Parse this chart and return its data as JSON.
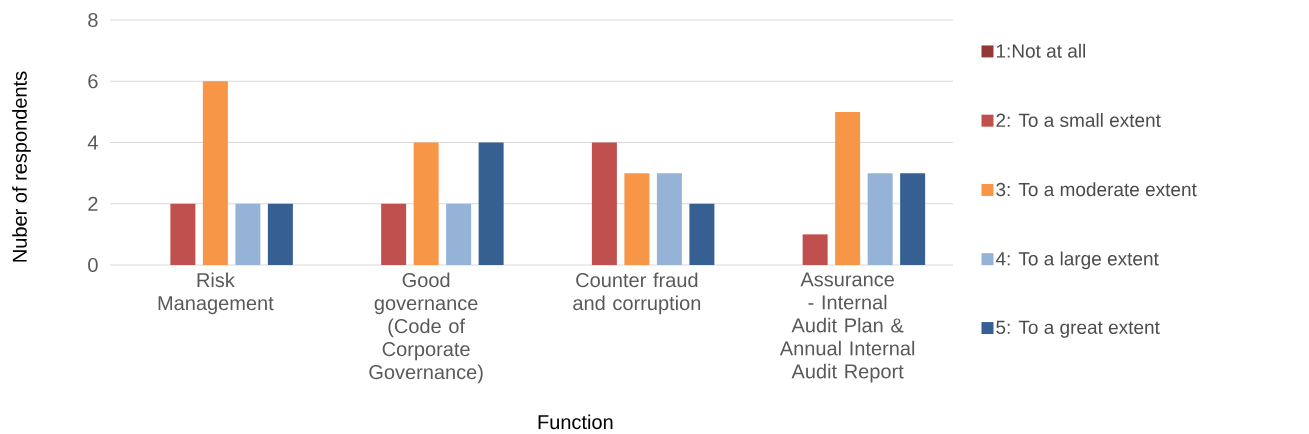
{
  "chart_data": {
    "type": "bar",
    "xlabel": "Function",
    "ylabel": "Nuber of respondents",
    "categories": [
      "Risk Management",
      "Good governance (Code of Corporate Governance)",
      "Counter fraud and corruption",
      "Assurance - Internal Audit Plan & Annual Internal Audit Report"
    ],
    "series": [
      {
        "name": "1:Not at all",
        "color": "#953735",
        "values": [
          0,
          0,
          0,
          0
        ]
      },
      {
        "name": "2: To a small extent",
        "color": "#c0504d",
        "values": [
          2,
          2,
          4,
          1
        ]
      },
      {
        "name": "3: To a moderate extent",
        "color": "#f79646",
        "values": [
          6,
          4,
          3,
          5
        ]
      },
      {
        "name": "4: To a large extent",
        "color": "#95b3d7",
        "values": [
          2,
          2,
          3,
          3
        ]
      },
      {
        "name": "5: To a great extent",
        "color": "#366092",
        "values": [
          2,
          4,
          2,
          3
        ]
      }
    ],
    "ylim": [
      0,
      8
    ],
    "yticks": [
      0,
      2,
      4,
      6,
      8
    ],
    "grid": "y",
    "legend": "right"
  }
}
